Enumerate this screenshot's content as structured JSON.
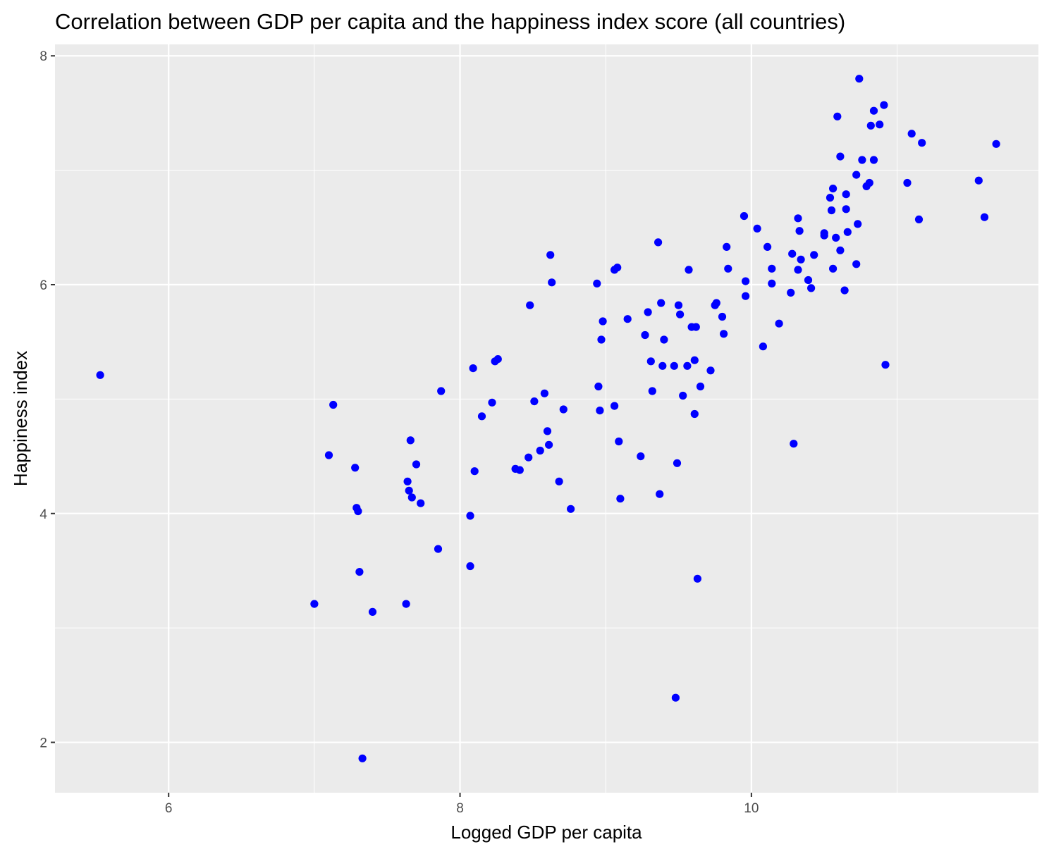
{
  "chart_data": {
    "type": "scatter",
    "title": "Correlation between GDP per capita and the happiness index score (all countries)",
    "xlabel": "Logged GDP per capita",
    "ylabel": "Happiness index",
    "xlim": [
      5.22,
      11.97
    ],
    "ylim": [
      1.56,
      8.1
    ],
    "x_ticks": [
      6,
      8,
      10
    ],
    "y_ticks": [
      2,
      4,
      6,
      8
    ],
    "x_minor": [
      7,
      9,
      11
    ],
    "y_minor": [
      3,
      5,
      7
    ],
    "grid": true,
    "legend": "none",
    "panel_color": "#ebebeb",
    "point_color": "#0000ff",
    "points": [
      [
        5.53,
        5.21
      ],
      [
        7.0,
        3.21
      ],
      [
        7.1,
        4.51
      ],
      [
        7.13,
        4.95
      ],
      [
        7.28,
        4.4
      ],
      [
        7.29,
        4.05
      ],
      [
        7.3,
        4.02
      ],
      [
        7.31,
        3.49
      ],
      [
        7.33,
        1.86
      ],
      [
        7.4,
        3.14
      ],
      [
        7.63,
        3.21
      ],
      [
        7.64,
        4.28
      ],
      [
        7.65,
        4.2
      ],
      [
        7.66,
        4.64
      ],
      [
        7.67,
        4.14
      ],
      [
        7.7,
        4.43
      ],
      [
        7.73,
        4.09
      ],
      [
        7.85,
        3.69
      ],
      [
        7.87,
        5.07
      ],
      [
        8.07,
        3.98
      ],
      [
        8.07,
        3.54
      ],
      [
        8.09,
        5.27
      ],
      [
        8.1,
        4.37
      ],
      [
        8.15,
        4.85
      ],
      [
        8.22,
        4.97
      ],
      [
        8.24,
        5.33
      ],
      [
        8.26,
        5.35
      ],
      [
        8.38,
        4.39
      ],
      [
        8.41,
        4.38
      ],
      [
        8.47,
        4.49
      ],
      [
        8.48,
        5.82
      ],
      [
        8.51,
        4.98
      ],
      [
        8.55,
        4.55
      ],
      [
        8.58,
        5.05
      ],
      [
        8.6,
        4.72
      ],
      [
        8.61,
        4.6
      ],
      [
        8.62,
        6.26
      ],
      [
        8.63,
        6.02
      ],
      [
        8.68,
        4.28
      ],
      [
        8.71,
        4.91
      ],
      [
        8.76,
        4.04
      ],
      [
        8.94,
        6.01
      ],
      [
        8.95,
        5.11
      ],
      [
        8.96,
        4.9
      ],
      [
        8.97,
        5.52
      ],
      [
        8.98,
        5.68
      ],
      [
        9.06,
        6.13
      ],
      [
        9.06,
        4.94
      ],
      [
        9.08,
        6.15
      ],
      [
        9.09,
        4.63
      ],
      [
        9.1,
        4.13
      ],
      [
        9.15,
        5.7
      ],
      [
        9.24,
        4.5
      ],
      [
        9.27,
        5.56
      ],
      [
        9.29,
        5.76
      ],
      [
        9.31,
        5.33
      ],
      [
        9.32,
        5.07
      ],
      [
        9.36,
        6.37
      ],
      [
        9.37,
        4.17
      ],
      [
        9.38,
        5.84
      ],
      [
        9.39,
        5.29
      ],
      [
        9.4,
        5.52
      ],
      [
        9.47,
        5.29
      ],
      [
        9.48,
        2.39
      ],
      [
        9.49,
        4.44
      ],
      [
        9.5,
        5.82
      ],
      [
        9.51,
        5.74
      ],
      [
        9.53,
        5.03
      ],
      [
        9.56,
        5.29
      ],
      [
        9.57,
        6.13
      ],
      [
        9.59,
        5.63
      ],
      [
        9.61,
        4.87
      ],
      [
        9.61,
        5.34
      ],
      [
        9.62,
        5.63
      ],
      [
        9.63,
        3.43
      ],
      [
        9.65,
        5.11
      ],
      [
        9.72,
        5.25
      ],
      [
        9.75,
        5.82
      ],
      [
        9.76,
        5.84
      ],
      [
        9.8,
        5.72
      ],
      [
        9.81,
        5.57
      ],
      [
        9.83,
        6.33
      ],
      [
        9.84,
        6.14
      ],
      [
        9.95,
        6.6
      ],
      [
        9.96,
        6.03
      ],
      [
        9.96,
        5.9
      ],
      [
        10.04,
        6.49
      ],
      [
        10.08,
        5.46
      ],
      [
        10.11,
        6.33
      ],
      [
        10.14,
        6.14
      ],
      [
        10.14,
        6.01
      ],
      [
        10.19,
        5.66
      ],
      [
        10.27,
        5.93
      ],
      [
        10.28,
        6.27
      ],
      [
        10.29,
        4.61
      ],
      [
        10.32,
        6.58
      ],
      [
        10.32,
        6.13
      ],
      [
        10.33,
        6.47
      ],
      [
        10.34,
        6.22
      ],
      [
        10.39,
        6.04
      ],
      [
        10.41,
        5.97
      ],
      [
        10.43,
        6.26
      ],
      [
        10.5,
        6.45
      ],
      [
        10.5,
        6.43
      ],
      [
        10.54,
        6.76
      ],
      [
        10.55,
        6.65
      ],
      [
        10.56,
        6.14
      ],
      [
        10.56,
        6.84
      ],
      [
        10.58,
        6.41
      ],
      [
        10.59,
        7.47
      ],
      [
        10.61,
        6.3
      ],
      [
        10.61,
        7.12
      ],
      [
        10.64,
        5.95
      ],
      [
        10.65,
        6.66
      ],
      [
        10.65,
        6.79
      ],
      [
        10.66,
        6.46
      ],
      [
        10.72,
        6.18
      ],
      [
        10.72,
        6.96
      ],
      [
        10.73,
        6.53
      ],
      [
        10.74,
        7.8
      ],
      [
        10.76,
        7.09
      ],
      [
        10.79,
        6.86
      ],
      [
        10.81,
        6.89
      ],
      [
        10.82,
        7.39
      ],
      [
        10.84,
        7.52
      ],
      [
        10.84,
        7.09
      ],
      [
        10.88,
        7.4
      ],
      [
        10.91,
        7.57
      ],
      [
        10.92,
        5.3
      ],
      [
        11.07,
        6.89
      ],
      [
        11.1,
        7.32
      ],
      [
        11.15,
        6.57
      ],
      [
        11.17,
        7.24
      ],
      [
        11.56,
        6.91
      ],
      [
        11.6,
        6.59
      ],
      [
        11.68,
        7.23
      ]
    ]
  }
}
